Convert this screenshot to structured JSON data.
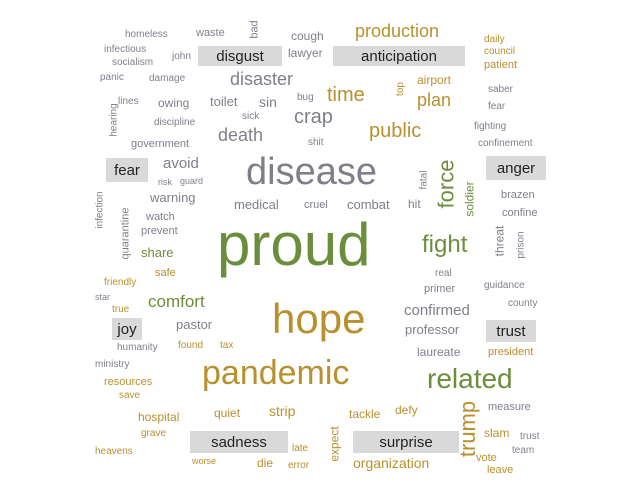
{
  "colors": {
    "gray": "#7f7f8c",
    "olive": "#6b8e3c",
    "gold": "#b8902e",
    "emotion_bg": "#d9d9d9"
  },
  "emotions": [
    "disgust",
    "anticipation",
    "fear",
    "anger",
    "joy",
    "trust",
    "sadness",
    "surprise"
  ],
  "words": [
    "homeless",
    "waste",
    "bad",
    "cough",
    "production",
    "daily",
    "infectious",
    "john",
    "lawyer",
    "council",
    "socialism",
    "patient",
    "panic",
    "damage",
    "disaster",
    "airport",
    "saber",
    "top",
    "bug",
    "time",
    "lines",
    "owing",
    "toilet",
    "sin",
    "plan",
    "fear",
    "hearing",
    "sick",
    "crap",
    "discipline",
    "fighting",
    "shit",
    "public",
    "death",
    "government",
    "confinement",
    "disease",
    "avoid",
    "force",
    "fatal",
    "risk",
    "guard",
    "soldier",
    "warning",
    "medical",
    "cruel",
    "combat",
    "hit",
    "brazen",
    "infection",
    "confine",
    "watch",
    "quarantine",
    "prevent",
    "proud",
    "threat",
    "prison",
    "fight",
    "share",
    "safe",
    "real",
    "friendly",
    "primer",
    "guidance",
    "star",
    "comfort",
    "hope",
    "county",
    "true",
    "confirmed",
    "pastor",
    "professor",
    "humanity",
    "found",
    "tax",
    "laureate",
    "president",
    "ministry",
    "pandemic",
    "related",
    "resources",
    "save",
    "quiet",
    "strip",
    "tackle",
    "defy",
    "measure",
    "trump",
    "hospital",
    "grave",
    "slam",
    "trust",
    "team",
    "expect",
    "heavens",
    "late",
    "worse",
    "die",
    "error",
    "organization",
    "vote",
    "leave"
  ]
}
